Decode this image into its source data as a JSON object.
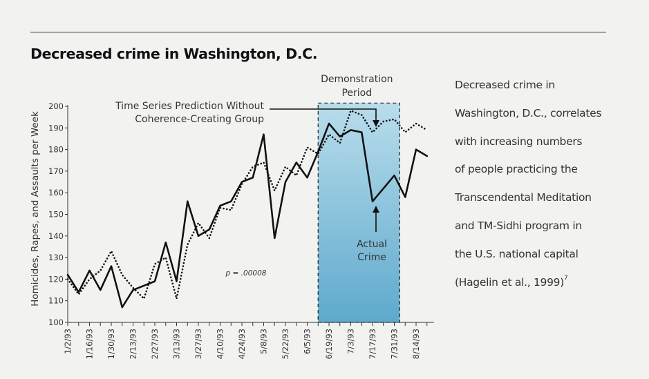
{
  "page": {
    "title": "Decreased crime in Washington, D.C.",
    "caption_lines": [
      "Decreased crime in",
      "Washington, D.C., correlates",
      "with increasing numbers",
      "of people practicing the",
      "Transcendental Meditation",
      "and TM-Sidhi program in",
      "the U.S. national capital"
    ],
    "caption_citation": "(Hagelin et al., 1999)",
    "caption_superscript": "7"
  },
  "chart_data": {
    "type": "line",
    "title": "Decreased crime in Washington, D.C.",
    "ylabel": "Homicides, Rapes, and Assaults per Week",
    "xlabel": "",
    "ylim": [
      100,
      200
    ],
    "yticks": [
      100,
      110,
      120,
      130,
      140,
      150,
      160,
      170,
      180,
      190,
      200
    ],
    "x_tick_labels": [
      "1/2/93",
      "1/16/93",
      "1/30/93",
      "2/13/93",
      "2/27/93",
      "3/13/93",
      "3/27/93",
      "4/10/93",
      "4/24/93",
      "5/8/93",
      "5/22/93",
      "6/5/93",
      "6/19/93",
      "7/3/93",
      "7/17/93",
      "7/31/93",
      "8/14/93"
    ],
    "week_count": 34,
    "grid": false,
    "series": [
      {
        "name": "Actual Crime",
        "style": "solid",
        "color": "#111111",
        "values": [
          122,
          114,
          124,
          115,
          126,
          107,
          115,
          117,
          119,
          137,
          119,
          156,
          140,
          143,
          154,
          156,
          165,
          167,
          187,
          139,
          165,
          174,
          167,
          179,
          192,
          186,
          189,
          188,
          156,
          162,
          168,
          158,
          180,
          177
        ]
      },
      {
        "name": "Time Series Prediction Without Coherence-Creating Group",
        "style": "dotted",
        "color": "#111111",
        "values": [
          120,
          113,
          120,
          124,
          133,
          122,
          116,
          111,
          127,
          130,
          111,
          136,
          146,
          139,
          153,
          152,
          164,
          172,
          174,
          161,
          172,
          168,
          181,
          178,
          187,
          183,
          198,
          196,
          188,
          193,
          194,
          188,
          192,
          189
        ]
      }
    ],
    "shaded_region": {
      "label": "Demonstration Period",
      "start_week": 23,
      "end_week": 30.5,
      "color": "#7ec0dc"
    },
    "annotations": {
      "prediction_label_lines": [
        "Time Series Prediction Without",
        "Coherence-Creating Group"
      ],
      "actual_label_lines": [
        "Actual",
        "Crime"
      ],
      "region_label_lines": [
        "Demonstration",
        "Period"
      ],
      "p_value": "p = .00008"
    }
  }
}
